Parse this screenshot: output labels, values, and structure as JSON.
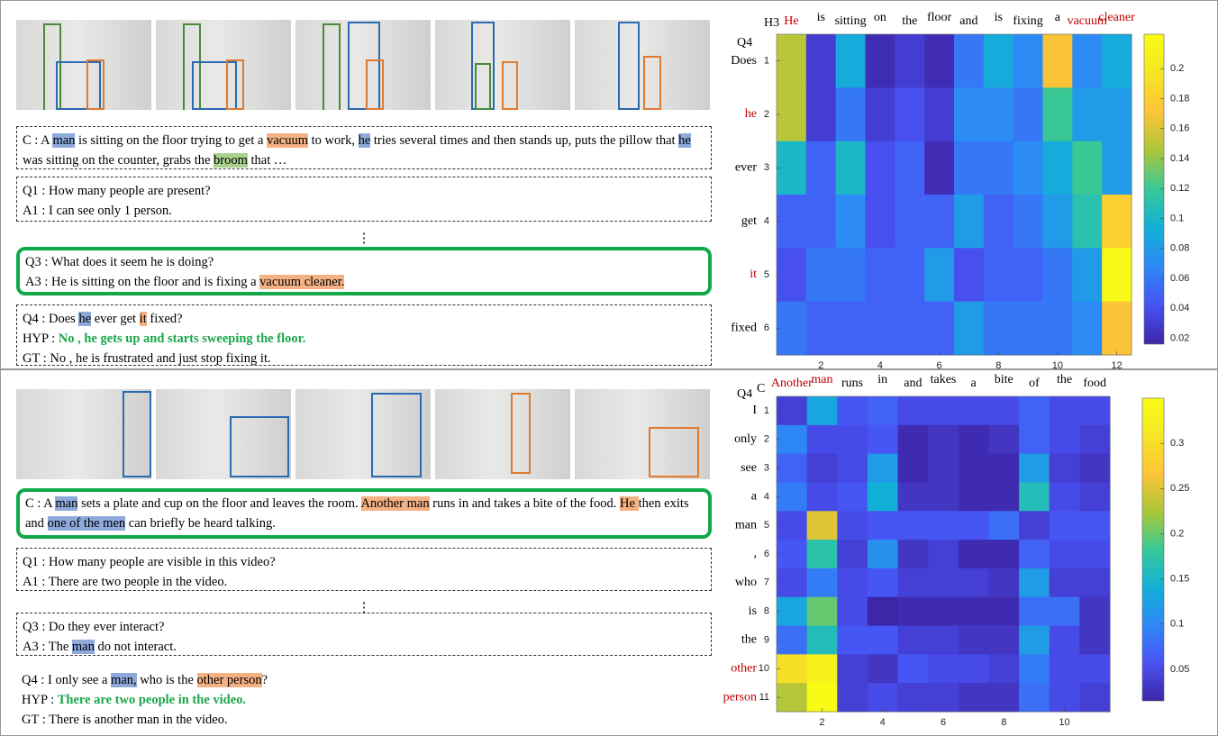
{
  "panels": [
    {
      "dialog": [
        {
          "frame": "dashed",
          "lines": [
            [
              {
                "text": "C : A "
              },
              {
                "text": "man",
                "highlight": "blue"
              },
              {
                "text": " is sitting on the floor trying to get a "
              },
              {
                "text": "vacuum",
                "highlight": "orange"
              },
              {
                "text": " to work, "
              },
              {
                "text": "he",
                "highlight": "blue"
              },
              {
                "text": " tries several times and then stands up, puts the pillow that "
              },
              {
                "text": "he",
                "highlight": "blue"
              },
              {
                "text": " was sitting on the counter, grabs the "
              },
              {
                "text": "broom",
                "highlight": "green"
              },
              {
                "text": " that …"
              }
            ]
          ]
        },
        {
          "frame": "dashed",
          "lines": [
            [
              {
                "text": "Q1 : How many people are present?"
              }
            ],
            [
              {
                "text": "A1 : I can see only 1 person."
              }
            ]
          ]
        },
        {
          "frame": "none",
          "align": "center",
          "lines": [
            [
              {
                "text": "⋮"
              }
            ]
          ]
        },
        {
          "frame": "green",
          "lines": [
            [
              {
                "text": "Q3 : What does it seem he is doing?"
              }
            ],
            [
              {
                "text": "A3 : He is sitting on the floor and is fixing a "
              },
              {
                "text": "vacuum cleaner.",
                "highlight": "orange"
              }
            ]
          ]
        },
        {
          "frame": "dashed",
          "lines": [
            [
              {
                "text": "Q4 : Does "
              },
              {
                "text": "he",
                "highlight": "blue"
              },
              {
                "text": " ever get "
              },
              {
                "text": "it",
                "highlight": "orange"
              },
              {
                "text": " fixed?"
              }
            ],
            [
              {
                "text": "HYP : "
              },
              {
                "text": "No , he gets up and starts sweeping the floor.",
                "style": "answer"
              }
            ],
            [
              {
                "text": "GT : No , he is frustrated and just stop fixing it."
              }
            ]
          ]
        }
      ],
      "heatmap": {
        "row_header": "Q4",
        "column_header": "H3",
        "columns": [
          "He",
          "is",
          "sitting",
          "on",
          "the",
          "floor",
          "and",
          "is",
          "fixing",
          "a",
          "vacuum",
          "cleaner"
        ],
        "emphasized_columns": [
          0,
          10,
          11
        ],
        "rows": [
          "Does",
          "he",
          "ever",
          "get",
          "it",
          "fixed"
        ],
        "emphasized_rows": [
          1,
          4
        ],
        "values": [
          [
            0.15,
            0.03,
            0.09,
            0.02,
            0.03,
            0.02,
            0.06,
            0.09,
            0.07,
            0.17,
            0.07,
            0.09
          ],
          [
            0.15,
            0.03,
            0.06,
            0.03,
            0.04,
            0.03,
            0.07,
            0.07,
            0.06,
            0.12,
            0.08,
            0.08
          ],
          [
            0.1,
            0.05,
            0.1,
            0.04,
            0.05,
            0.02,
            0.06,
            0.06,
            0.07,
            0.09,
            0.12,
            0.08
          ],
          [
            0.05,
            0.05,
            0.07,
            0.04,
            0.05,
            0.05,
            0.08,
            0.05,
            0.06,
            0.08,
            0.11,
            0.18
          ],
          [
            0.04,
            0.06,
            0.06,
            0.05,
            0.05,
            0.08,
            0.04,
            0.05,
            0.05,
            0.06,
            0.08,
            0.22
          ],
          [
            0.06,
            0.05,
            0.05,
            0.05,
            0.05,
            0.05,
            0.08,
            0.06,
            0.06,
            0.06,
            0.07,
            0.17
          ]
        ],
        "xticks": [
          2,
          4,
          6,
          8,
          10,
          12
        ],
        "yticks": [
          1,
          2,
          3,
          4,
          5,
          6
        ],
        "colormap": "parula",
        "clim": [
          0.016,
          0.223
        ],
        "colorbar_ticks": [
          0.02,
          0.04,
          0.06,
          0.08,
          0.1,
          0.12,
          0.14,
          0.16,
          0.18,
          0.2
        ]
      }
    },
    {
      "dialog": [
        {
          "frame": "green",
          "lines": [
            [
              {
                "text": "C : A "
              },
              {
                "text": "man",
                "highlight": "blue"
              },
              {
                "text": " sets a plate and cup on the floor and leaves the room. "
              },
              {
                "text": "Another man",
                "highlight": "orange"
              },
              {
                "text": " runs in and takes a bite of the food. "
              },
              {
                "text": " He ",
                "highlight": "orange"
              },
              {
                "text": "then exits and "
              },
              {
                "text": "one of the men",
                "highlight": "blue"
              },
              {
                "text": " can briefly be heard talking."
              }
            ]
          ]
        },
        {
          "frame": "dashed",
          "lines": [
            [
              {
                "text": "Q1 : How many people are visible in this video?"
              }
            ],
            [
              {
                "text": "A1 : There are two people in the video."
              }
            ]
          ]
        },
        {
          "frame": "none",
          "align": "center",
          "lines": [
            [
              {
                "text": "⋮"
              }
            ]
          ]
        },
        {
          "frame": "dashed",
          "lines": [
            [
              {
                "text": "Q3 : Do they ever interact?"
              }
            ],
            [
              {
                "text": "A3 : The "
              },
              {
                "text": "man",
                "highlight": "blue"
              },
              {
                "text": " do not interact."
              }
            ]
          ]
        },
        {
          "frame": "none",
          "lines": [
            [
              {
                "text": "Q4 : I only see a "
              },
              {
                "text": "man,",
                "highlight": "blue"
              },
              {
                "text": " who is the "
              },
              {
                "text": "other person",
                "highlight": "orange"
              },
              {
                "text": "?"
              }
            ],
            [
              {
                "text": "HYP : "
              },
              {
                "text": "There are two people in the video.",
                "style": "answer"
              }
            ],
            [
              {
                "text": "GT : There is another man in the video."
              }
            ]
          ]
        }
      ],
      "heatmap": {
        "row_header": "Q4",
        "column_header": "C",
        "columns": [
          "Another",
          "man",
          "runs",
          "in",
          "and",
          "takes",
          "a",
          "bite",
          "of",
          "the",
          "food"
        ],
        "emphasized_columns": [
          0,
          1
        ],
        "rows": [
          "I",
          "only",
          "see",
          "a",
          "man",
          ",",
          "who",
          "is",
          "the",
          "other",
          "person"
        ],
        "emphasized_rows": [
          9,
          10
        ],
        "values": [
          [
            0.04,
            0.13,
            0.06,
            0.07,
            0.05,
            0.05,
            0.05,
            0.05,
            0.07,
            0.05,
            0.05
          ],
          [
            0.1,
            0.05,
            0.05,
            0.06,
            0.02,
            0.03,
            0.02,
            0.03,
            0.07,
            0.05,
            0.04
          ],
          [
            0.07,
            0.04,
            0.05,
            0.12,
            0.02,
            0.03,
            0.02,
            0.02,
            0.12,
            0.04,
            0.03
          ],
          [
            0.09,
            0.05,
            0.06,
            0.14,
            0.03,
            0.03,
            0.02,
            0.02,
            0.16,
            0.05,
            0.04
          ],
          [
            0.05,
            0.25,
            0.05,
            0.06,
            0.06,
            0.06,
            0.06,
            0.08,
            0.04,
            0.06,
            0.06
          ],
          [
            0.06,
            0.17,
            0.04,
            0.11,
            0.03,
            0.04,
            0.02,
            0.02,
            0.07,
            0.05,
            0.05
          ],
          [
            0.05,
            0.09,
            0.05,
            0.06,
            0.04,
            0.04,
            0.04,
            0.03,
            0.12,
            0.04,
            0.04
          ],
          [
            0.13,
            0.2,
            0.05,
            0.01,
            0.02,
            0.02,
            0.02,
            0.02,
            0.08,
            0.08,
            0.03
          ],
          [
            0.08,
            0.16,
            0.06,
            0.06,
            0.04,
            0.04,
            0.03,
            0.03,
            0.12,
            0.05,
            0.03
          ],
          [
            0.3,
            0.33,
            0.04,
            0.03,
            0.06,
            0.05,
            0.05,
            0.04,
            0.09,
            0.05,
            0.05
          ],
          [
            0.23,
            0.35,
            0.04,
            0.05,
            0.04,
            0.04,
            0.03,
            0.03,
            0.08,
            0.05,
            0.04
          ]
        ],
        "xticks": [
          2,
          4,
          6,
          8,
          10
        ],
        "yticks": [
          1,
          2,
          3,
          4,
          5,
          6,
          7,
          8,
          9,
          10,
          11
        ],
        "colormap": "parula",
        "clim": [
          0.015,
          0.35
        ],
        "colorbar_ticks": [
          0.05,
          0.1,
          0.15,
          0.2,
          0.25,
          0.3
        ]
      }
    }
  ]
}
